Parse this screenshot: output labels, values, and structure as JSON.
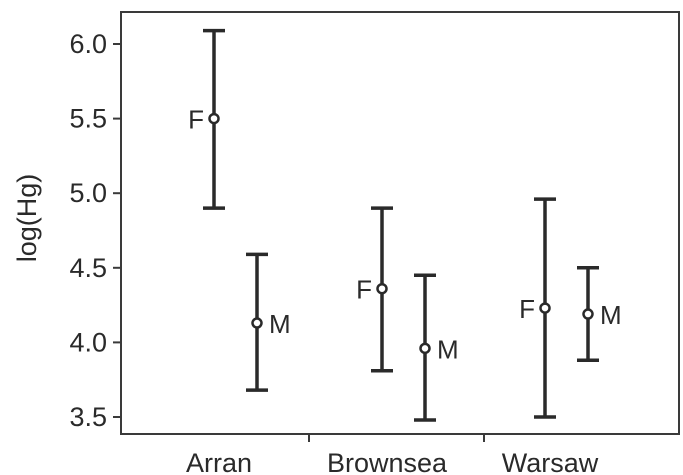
{
  "chart_data": {
    "type": "errorbar",
    "xlabel": "",
    "ylabel": "log(Hg)",
    "ylim": [
      3.45,
      6.2
    ],
    "yticks": [
      3.5,
      4.0,
      4.5,
      5.0,
      5.5,
      6.0
    ],
    "ytick_labels": [
      "3.5",
      "4.0",
      "4.5",
      "5.0",
      "5.5",
      "6.0"
    ],
    "categories": [
      "Arran",
      "Brownsea",
      "Warsaw"
    ],
    "grid": false,
    "series": [
      {
        "name": "F",
        "values": [
          5.5,
          4.36,
          4.23
        ],
        "upper": [
          6.09,
          4.9,
          4.96
        ],
        "lower": [
          4.9,
          3.81,
          3.5
        ]
      },
      {
        "name": "M",
        "values": [
          4.13,
          3.96,
          4.19
        ],
        "upper": [
          4.59,
          4.45,
          4.5
        ],
        "lower": [
          3.68,
          3.48,
          3.88
        ]
      }
    ],
    "colors": {
      "ink": "#2a2a2a",
      "axis": "#3a3a3a"
    }
  }
}
